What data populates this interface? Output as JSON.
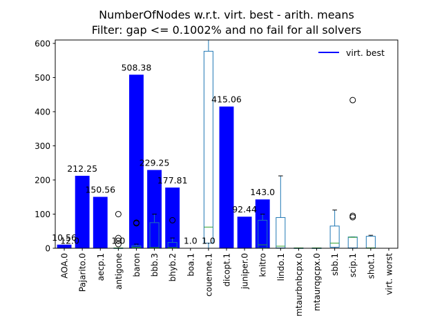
{
  "chart_data": {
    "type": "bar",
    "title": "NumberOfNodes w.r.t. virt. best - arith. means",
    "subtitle": "Filter: gap <= 0.1002% and no fail for all solvers",
    "xlabel": "",
    "ylabel": "",
    "ylim": [
      0,
      610
    ],
    "yticks": [
      0,
      100,
      200,
      300,
      400,
      500,
      600
    ],
    "categories": [
      "AOA.0",
      "Pajarito.0",
      "aecp.1",
      "antigone",
      "baron",
      "bbb.3",
      "bhyb.2",
      "boa.1",
      "couenne.1",
      "dicopt.1",
      "juniper.0",
      "knitro",
      "lindo.1",
      "mtaurbnbcpx.0",
      "mtaurqgcpx.0",
      "sbb.1",
      "scip.1",
      "shot.1",
      "virt. worst"
    ],
    "series": [
      {
        "name": "",
        "color": "#0000ff",
        "values": [
          10.56,
          212.25,
          150.56,
          null,
          508.38,
          229.25,
          177.81,
          1.0,
          1.0,
          415.06,
          92.44,
          143.0,
          null,
          null,
          null,
          null,
          null,
          null,
          null
        ],
        "labels": [
          "10.56",
          "212.25",
          "150.56",
          "",
          "508.38",
          "229.25",
          "177.81",
          "1.0",
          "1.0",
          "415.06",
          "92.44",
          "143.0",
          "",
          "",
          "",
          "",
          "",
          "",
          ""
        ]
      }
    ],
    "extra_labels": [
      {
        "category": "AOA.0",
        "text": "12.0"
      },
      {
        "category": "antigone",
        "text": "1.0"
      }
    ],
    "boxplots": [
      {
        "category": "antigone",
        "q1": 1,
        "median": 1,
        "q3": 1,
        "whisker_low": 1,
        "whisker_high": 1,
        "fliers": [
          100,
          30,
          22,
          12
        ]
      },
      {
        "category": "baron",
        "q1": 1,
        "median": 3,
        "q3": 7,
        "whisker_low": 1,
        "whisker_high": 12,
        "fliers": [
          75,
          73
        ]
      },
      {
        "category": "bbb.3",
        "q1": 1,
        "median": 2,
        "q3": 75,
        "whisker_low": 1,
        "whisker_high": 100,
        "fliers": []
      },
      {
        "category": "bhyb.2",
        "q1": 1,
        "median": 2,
        "q3": 17,
        "whisker_low": 1,
        "whisker_high": 30,
        "fliers": [
          82
        ]
      },
      {
        "category": "couenne.1",
        "q1": 15,
        "median": 62,
        "q3": 577,
        "whisker_low": 1,
        "whisker_high": 610,
        "fliers": []
      },
      {
        "category": "knitro",
        "q1": 1,
        "median": 10,
        "q3": 82,
        "whisker_low": 1,
        "whisker_high": 100,
        "fliers": []
      },
      {
        "category": "lindo.1",
        "q1": 1,
        "median": 6,
        "q3": 90,
        "whisker_low": 1,
        "whisker_high": 212,
        "fliers": []
      },
      {
        "category": "mtaurbnbcpx.0",
        "q1": 1,
        "median": 1,
        "q3": 1,
        "whisker_low": 1,
        "whisker_high": 1,
        "fliers": []
      },
      {
        "category": "mtaurqgcpx.0",
        "q1": 1,
        "median": 1,
        "q3": 1,
        "whisker_low": 1,
        "whisker_high": 1,
        "fliers": []
      },
      {
        "category": "sbb.1",
        "q1": 3,
        "median": 15,
        "q3": 65,
        "whisker_low": 1,
        "whisker_high": 112,
        "fliers": []
      },
      {
        "category": "scip.1",
        "q1": 1,
        "median": 32,
        "q3": 33,
        "whisker_low": 1,
        "whisker_high": 33,
        "fliers": [
          434,
          95,
          91
        ]
      },
      {
        "category": "shot.1",
        "q1": 1,
        "median": 1,
        "q3": 35,
        "whisker_low": 1,
        "whisker_high": 38,
        "fliers": []
      }
    ],
    "box_color": "#1f77b4",
    "median_color": "#2ca02c",
    "legend": {
      "position": "top-right",
      "label": "virt. best",
      "color": "#0000ff"
    },
    "grid": false
  }
}
